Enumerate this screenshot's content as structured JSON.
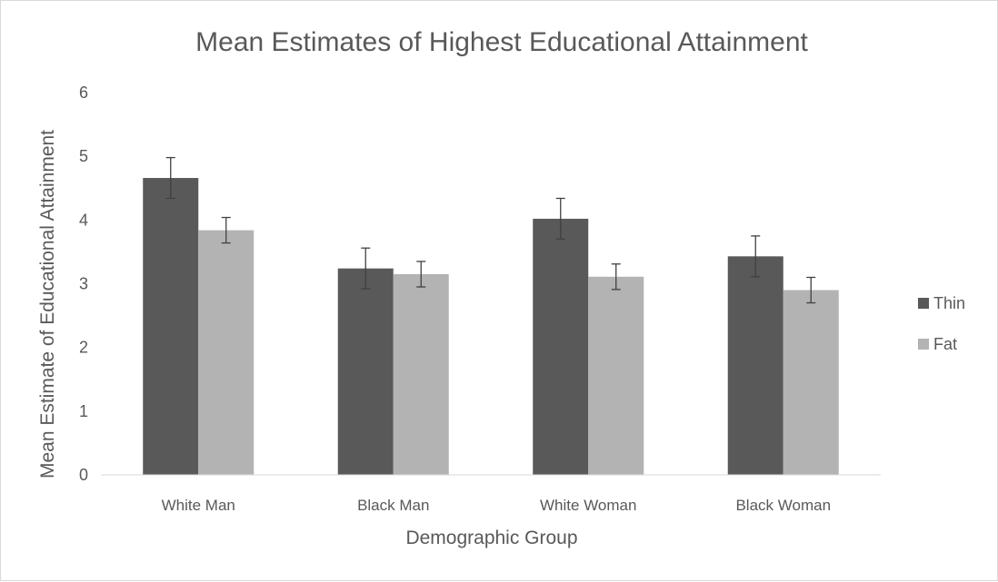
{
  "chart_data": {
    "type": "bar",
    "title": "Mean Estimates of Highest Educational Attainment",
    "xlabel": "Demographic Group",
    "ylabel": "Mean Estimate of Educational Attainment",
    "categories": [
      "White Man",
      "Black Man",
      "White Woman",
      "Black Woman"
    ],
    "series": [
      {
        "name": "Thin",
        "color": "#595959",
        "values": [
          4.66,
          3.24,
          4.02,
          3.43
        ],
        "error": [
          0.32,
          0.32,
          0.32,
          0.32
        ]
      },
      {
        "name": "Fat",
        "color": "#b3b3b3",
        "values": [
          3.84,
          3.15,
          3.11,
          2.9
        ],
        "error": [
          0.2,
          0.2,
          0.2,
          0.2
        ]
      }
    ],
    "ylim": [
      0,
      6
    ],
    "yticks": [
      "0",
      "1",
      "2",
      "3",
      "4",
      "5",
      "6"
    ],
    "grid": false,
    "legend": "right",
    "error_bars": true
  }
}
